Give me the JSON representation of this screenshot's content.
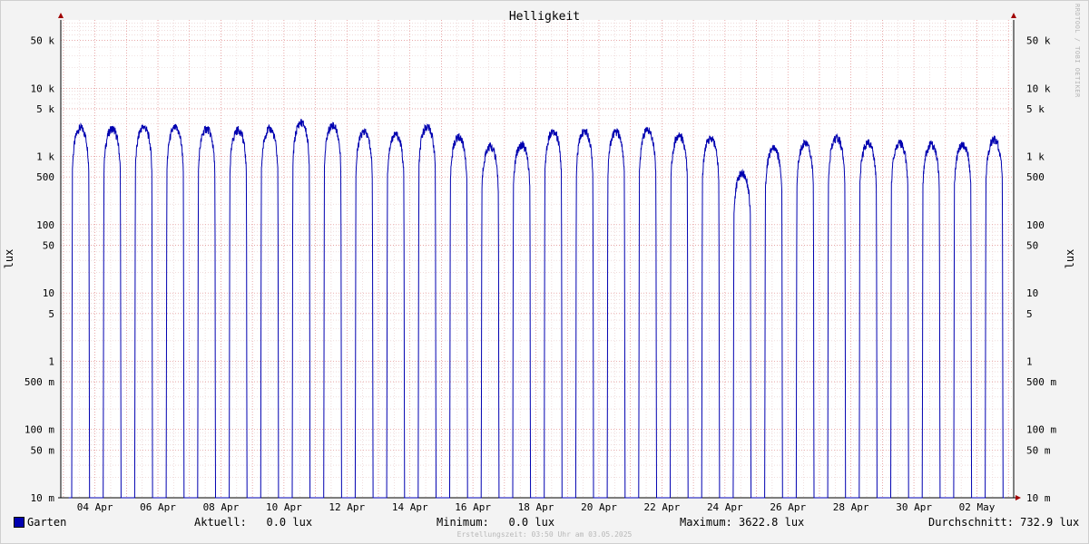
{
  "chart_data": {
    "type": "line",
    "title": "Helligkeit",
    "ylabel": "lux",
    "yscale": "log",
    "ylim": [
      0.01,
      100000
    ],
    "xlim": [
      "2025-04-02T22:00",
      "2025-05-03T04:00"
    ],
    "y_ticks": [
      {
        "value": 0.01,
        "label": "10 m"
      },
      {
        "value": 0.05,
        "label": "50 m"
      },
      {
        "value": 0.1,
        "label": "100 m"
      },
      {
        "value": 0.5,
        "label": "500 m"
      },
      {
        "value": 1,
        "label": "1"
      },
      {
        "value": 5,
        "label": "5"
      },
      {
        "value": 10,
        "label": "10"
      },
      {
        "value": 50,
        "label": "50"
      },
      {
        "value": 100,
        "label": "100"
      },
      {
        "value": 500,
        "label": "500"
      },
      {
        "value": 1000,
        "label": "1 k"
      },
      {
        "value": 5000,
        "label": "5 k"
      },
      {
        "value": 10000,
        "label": "10 k"
      },
      {
        "value": 50000,
        "label": "50 k"
      }
    ],
    "x_ticks": [
      {
        "date": "2025-04-04",
        "label": "04 Apr"
      },
      {
        "date": "2025-04-06",
        "label": "06 Apr"
      },
      {
        "date": "2025-04-08",
        "label": "08 Apr"
      },
      {
        "date": "2025-04-10",
        "label": "10 Apr"
      },
      {
        "date": "2025-04-12",
        "label": "12 Apr"
      },
      {
        "date": "2025-04-14",
        "label": "14 Apr"
      },
      {
        "date": "2025-04-16",
        "label": "16 Apr"
      },
      {
        "date": "2025-04-18",
        "label": "18 Apr"
      },
      {
        "date": "2025-04-20",
        "label": "20 Apr"
      },
      {
        "date": "2025-04-22",
        "label": "22 Apr"
      },
      {
        "date": "2025-04-24",
        "label": "24 Apr"
      },
      {
        "date": "2025-04-26",
        "label": "26 Apr"
      },
      {
        "date": "2025-04-28",
        "label": "28 Apr"
      },
      {
        "date": "2025-04-30",
        "label": "30 Apr"
      },
      {
        "date": "2025-05-02",
        "label": "02 May"
      }
    ],
    "grid": true,
    "series": [
      {
        "name": "Garten",
        "color": "#0000b0",
        "daily_peak_lux": [
          {
            "date": "2025-04-03",
            "peak": 3000
          },
          {
            "date": "2025-04-04",
            "peak": 2900
          },
          {
            "date": "2025-04-05",
            "peak": 3100
          },
          {
            "date": "2025-04-06",
            "peak": 3000
          },
          {
            "date": "2025-04-07",
            "peak": 2900
          },
          {
            "date": "2025-04-08",
            "peak": 2800
          },
          {
            "date": "2025-04-09",
            "peak": 2900
          },
          {
            "date": "2025-04-10",
            "peak": 3600
          },
          {
            "date": "2025-04-11",
            "peak": 3300
          },
          {
            "date": "2025-04-12",
            "peak": 2600
          },
          {
            "date": "2025-04-13",
            "peak": 2400
          },
          {
            "date": "2025-04-14",
            "peak": 3100
          },
          {
            "date": "2025-04-15",
            "peak": 2200
          },
          {
            "date": "2025-04-16",
            "peak": 1600
          },
          {
            "date": "2025-04-17",
            "peak": 1700
          },
          {
            "date": "2025-04-18",
            "peak": 2700
          },
          {
            "date": "2025-04-19",
            "peak": 2700
          },
          {
            "date": "2025-04-20",
            "peak": 2600
          },
          {
            "date": "2025-04-21",
            "peak": 2800
          },
          {
            "date": "2025-04-22",
            "peak": 2300
          },
          {
            "date": "2025-04-23",
            "peak": 2100
          },
          {
            "date": "2025-04-24",
            "peak": 650
          },
          {
            "date": "2025-04-25",
            "peak": 1500
          },
          {
            "date": "2025-04-26",
            "peak": 1800
          },
          {
            "date": "2025-04-27",
            "peak": 2100
          },
          {
            "date": "2025-04-28",
            "peak": 1800
          },
          {
            "date": "2025-04-29",
            "peak": 1800
          },
          {
            "date": "2025-04-30",
            "peak": 1700
          },
          {
            "date": "2025-05-01",
            "peak": 1700
          },
          {
            "date": "2025-05-02",
            "peak": 2000
          }
        ],
        "night_value_lux": 0
      }
    ]
  },
  "chart": {
    "watermark": "RRDTOOL / TOBI OETIKER"
  },
  "legend": {
    "series_name": "Garten",
    "current_text": "Aktuell:   0.0 lux",
    "minimum_text": "Minimum:   0.0 lux",
    "maximum_text": "Maximum: 3622.8 lux",
    "average_text": "Durchschnitt: 732.9 lux"
  },
  "footer": {
    "created": "Erstellungszeit: 03:50 Uhr am 03.05.2025"
  }
}
